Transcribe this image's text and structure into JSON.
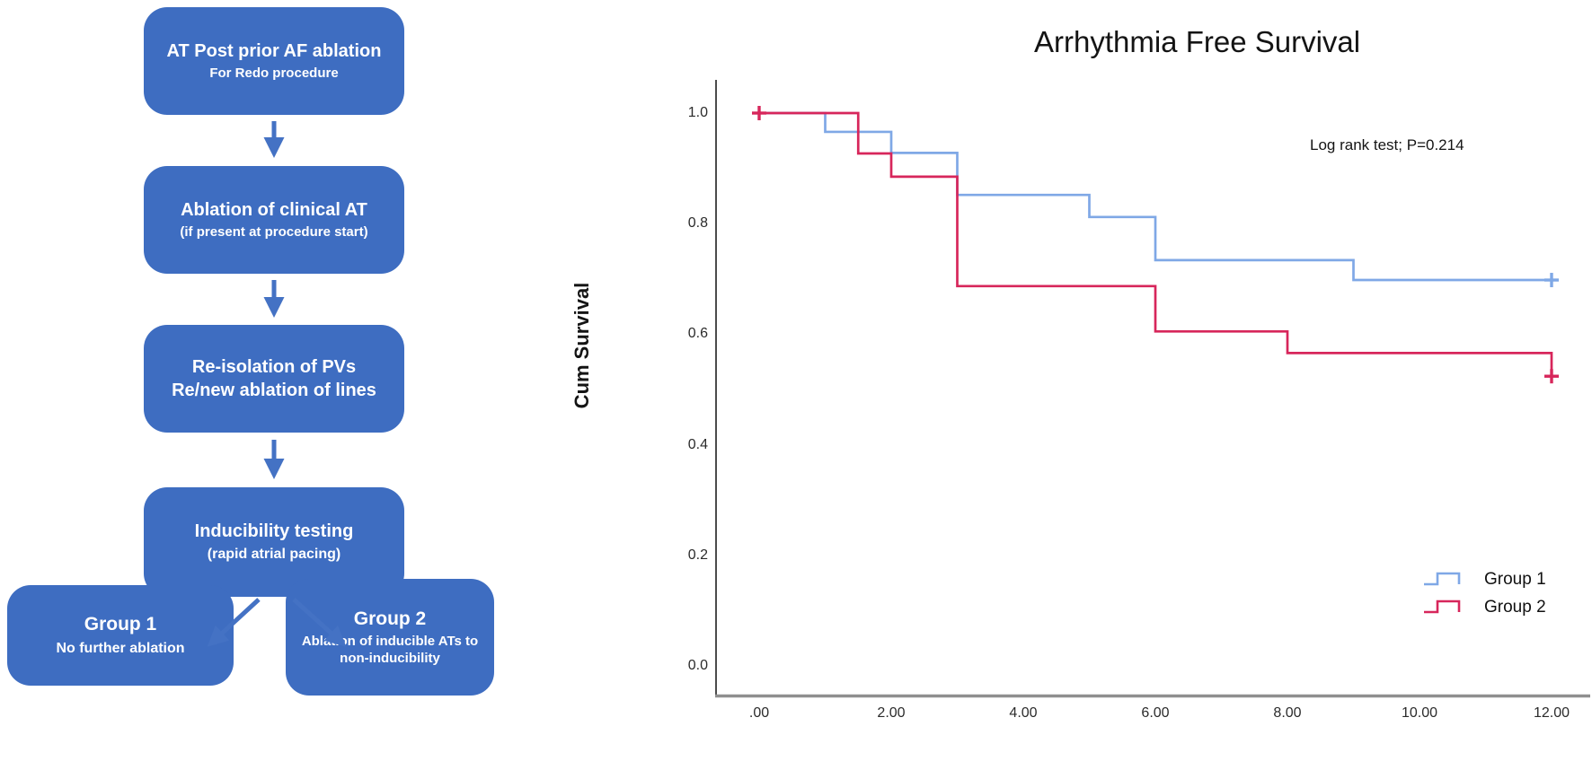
{
  "figure": {
    "kind": "flowchart + kaplan-meier survival plot"
  },
  "flowchart": {
    "box_color": "#3e6dc1",
    "arrow_color": "#4472c4",
    "boxes": [
      {
        "title": "AT Post prior AF ablation",
        "subtitle": "For Redo procedure"
      },
      {
        "title": "Ablation of clinical AT",
        "subtitle": "(if present at procedure start)"
      },
      {
        "title": "Re-isolation of PVs",
        "subtitle": "Re/new ablation of lines"
      },
      {
        "title": "Inducibility testing",
        "subtitle": "(rapid atrial pacing)"
      },
      {
        "title": "Group 1",
        "subtitle": "No further ablation"
      },
      {
        "title": "Group 2",
        "subtitle": "Ablation of inducible ATs to non-inducibility"
      }
    ]
  },
  "chart_data": {
    "type": "line",
    "subtype": "kaplan-meier-step",
    "title": "Arrhythmia Free Survival",
    "annotation": "Log rank test; P=0.214",
    "xlabel": "",
    "ylabel": "Cum Survival",
    "xlim": [
      0,
      12
    ],
    "ylim": [
      0.0,
      1.0
    ],
    "grid": false,
    "legend_position": "bottom-right",
    "x_ticks": [
      ".00",
      "2.00",
      "4.00",
      "6.00",
      "8.00",
      "10.00",
      "12.00"
    ],
    "x_tick_values": [
      0,
      2,
      4,
      6,
      8,
      10,
      12
    ],
    "y_ticks": [
      "0.0",
      "0.2",
      "0.4",
      "0.6",
      "0.8",
      "1.0"
    ],
    "y_tick_values": [
      0.0,
      0.2,
      0.4,
      0.6,
      0.8,
      1.0
    ],
    "axis_color": "#4c4c4c",
    "baseline_color": "#8f8f8f",
    "series": [
      {
        "name": "Group 1",
        "color": "#7fa8e6",
        "steps": [
          [
            0,
            1.0
          ],
          [
            1,
            0.966
          ],
          [
            2,
            0.928
          ],
          [
            3,
            0.852
          ],
          [
            5,
            0.812
          ],
          [
            6,
            0.734
          ],
          [
            9,
            0.698
          ]
        ],
        "end_x": 12,
        "censor_marks": [
          [
            12,
            0.698
          ]
        ]
      },
      {
        "name": "Group 2",
        "color": "#d7265b",
        "steps": [
          [
            0,
            1.0
          ],
          [
            1.5,
            0.927
          ],
          [
            2,
            0.885
          ],
          [
            3,
            0.687
          ],
          [
            6,
            0.605
          ],
          [
            8,
            0.566
          ],
          [
            12,
            0.524
          ]
        ],
        "end_x": 12,
        "censor_marks": [
          [
            0,
            1.0
          ],
          [
            12,
            0.524
          ]
        ]
      }
    ]
  }
}
